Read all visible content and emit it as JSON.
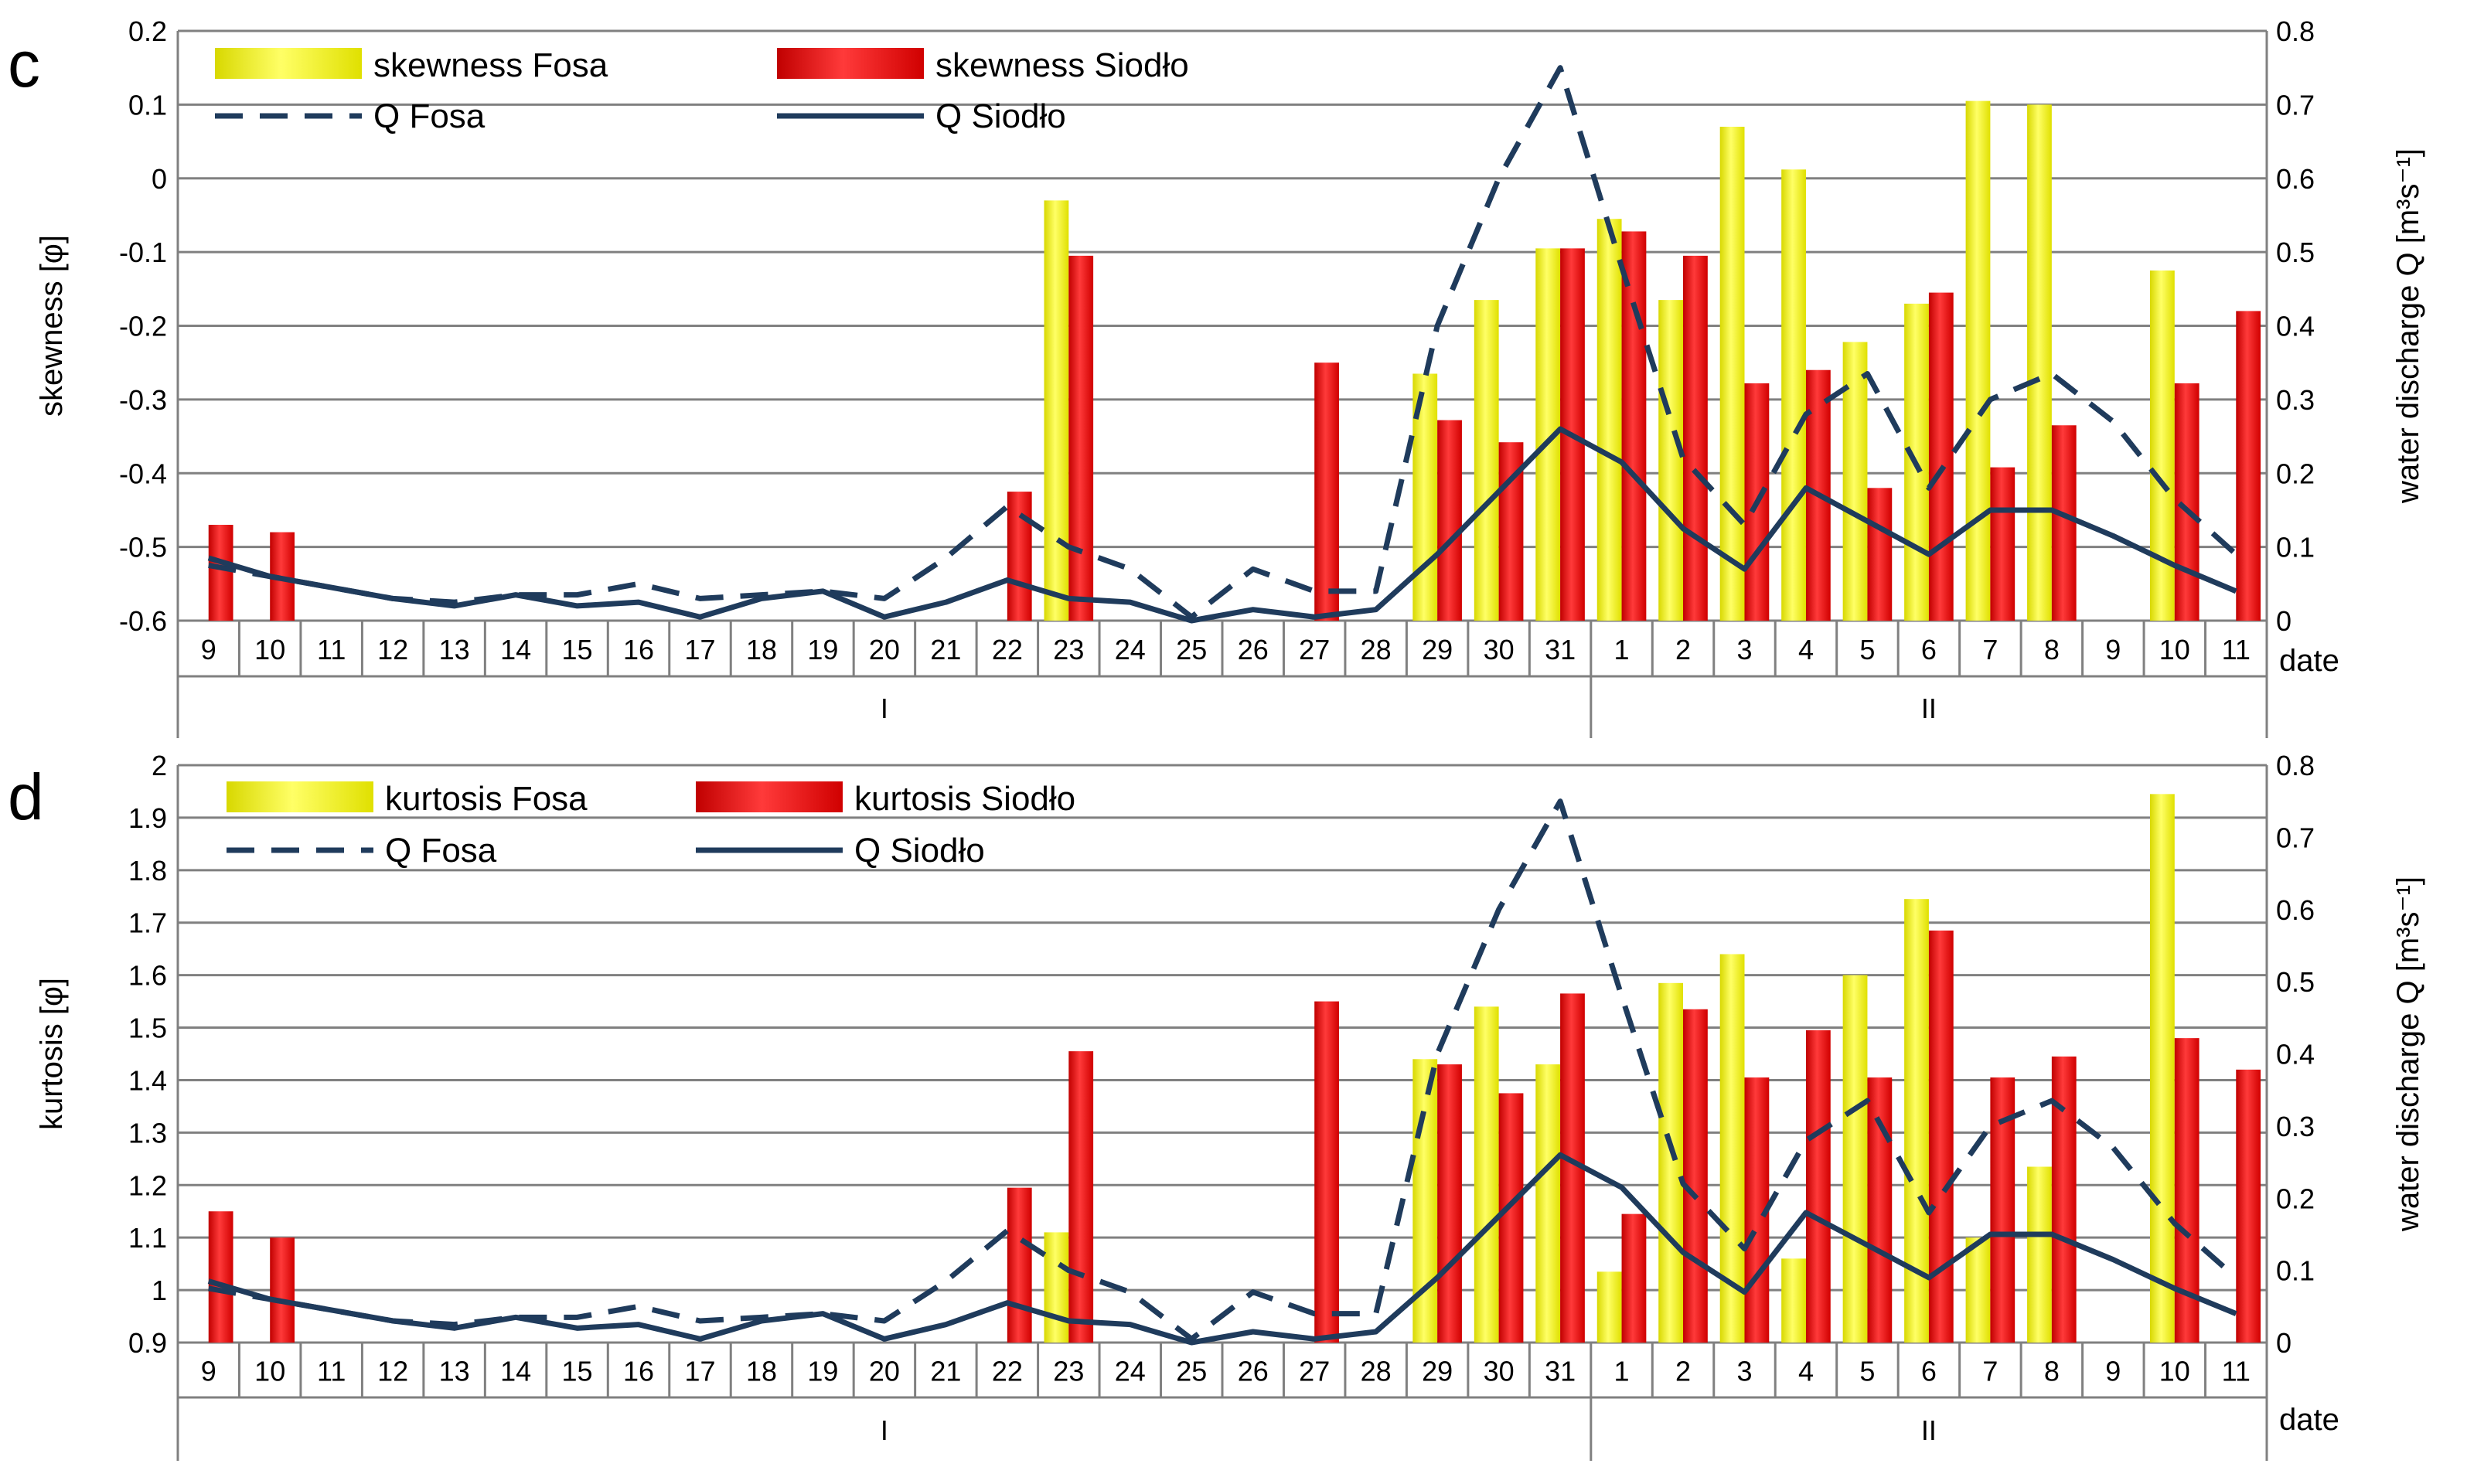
{
  "chart_data": [
    {
      "panel": "c",
      "type": "bar",
      "ylabel": "skewness [φ]",
      "y2label": "water discharge Q [m³s⁻¹]",
      "xlabel": "date",
      "ylim": [
        -0.6,
        0.2
      ],
      "yticks": [
        0.2,
        0.1,
        0,
        -0.1,
        -0.2,
        -0.3,
        -0.4,
        -0.5,
        -0.6
      ],
      "ytick_labels": [
        "0.2",
        "0.1",
        "0",
        "-0.1",
        "-0.2",
        "-0.3",
        "-0.4",
        "-0.5",
        "-0.6"
      ],
      "y2lim": [
        0,
        0.8
      ],
      "y2ticks": [
        0.8,
        0.7,
        0.6,
        0.5,
        0.4,
        0.3,
        0.2,
        0.1,
        0
      ],
      "y2tick_labels": [
        "0.8",
        "0.7",
        "0.6",
        "0.5",
        "0.4",
        "0.3",
        "0.2",
        "0.1",
        "0"
      ],
      "categories": [
        "9",
        "10",
        "11",
        "12",
        "13",
        "14",
        "15",
        "16",
        "17",
        "18",
        "19",
        "20",
        "21",
        "22",
        "23",
        "24",
        "25",
        "26",
        "27",
        "28",
        "29",
        "30",
        "31",
        "1",
        "2",
        "3",
        "4",
        "5",
        "6",
        "7",
        "8",
        "9",
        "10",
        "11"
      ],
      "months": [
        {
          "label": "I",
          "from": 0,
          "to": 22
        },
        {
          "label": "II",
          "from": 23,
          "to": 33
        }
      ],
      "series": [
        {
          "name": "skewness Fosa",
          "kind": "bar",
          "color": "#ffff00",
          "values": [
            null,
            null,
            null,
            null,
            null,
            null,
            null,
            null,
            null,
            null,
            null,
            null,
            null,
            null,
            -0.03,
            null,
            null,
            null,
            null,
            null,
            -0.265,
            -0.165,
            -0.095,
            -0.055,
            -0.165,
            0.07,
            0.012,
            -0.222,
            -0.17,
            0.105,
            0.1,
            null,
            -0.125,
            null
          ]
        },
        {
          "name": "skewness Siodło",
          "kind": "bar",
          "color": "#ff0000",
          "values": [
            -0.47,
            -0.48,
            null,
            null,
            null,
            null,
            null,
            null,
            null,
            null,
            null,
            null,
            null,
            -0.425,
            -0.105,
            null,
            null,
            null,
            -0.25,
            null,
            -0.328,
            -0.358,
            -0.095,
            -0.072,
            -0.105,
            -0.278,
            -0.26,
            -0.42,
            -0.155,
            -0.392,
            -0.335,
            null,
            -0.278,
            -0.18
          ]
        },
        {
          "name": "Q Fosa",
          "kind": "line",
          "axis": "right",
          "dash": true,
          "values": [
            0.075,
            0.06,
            0.045,
            0.03,
            0.025,
            0.035,
            0.035,
            0.05,
            0.03,
            0.035,
            0.04,
            0.03,
            0.085,
            0.155,
            0.1,
            0.07,
            0.005,
            0.07,
            0.04,
            0.04,
            0.4,
            0.6,
            0.75,
            0.48,
            0.22,
            0.13,
            0.28,
            0.335,
            0.18,
            0.3,
            0.335,
            0.27,
            0.165,
            0.09
          ]
        },
        {
          "name": "Q Siodło",
          "kind": "line",
          "axis": "right",
          "dash": false,
          "values": [
            0.085,
            0.06,
            0.045,
            0.03,
            0.02,
            0.035,
            0.02,
            0.025,
            0.005,
            0.03,
            0.04,
            0.005,
            0.025,
            0.055,
            0.03,
            0.025,
            0.0,
            0.015,
            0.005,
            0.015,
            0.09,
            0.175,
            0.26,
            0.215,
            0.125,
            0.07,
            0.18,
            0.135,
            0.09,
            0.15,
            0.15,
            0.115,
            0.075,
            0.04
          ]
        }
      ]
    },
    {
      "panel": "d",
      "type": "bar",
      "ylabel": "kurtosis [φ]",
      "y2label": "water discharge Q [m³s⁻¹]",
      "xlabel": "date",
      "ylim": [
        0.9,
        2.0
      ],
      "yticks": [
        2,
        1.9,
        1.8,
        1.7,
        1.6,
        1.5,
        1.4,
        1.3,
        1.2,
        1.1,
        1,
        0.9
      ],
      "ytick_labels": [
        "2",
        "1.9",
        "1.8",
        "1.7",
        "1.6",
        "1.5",
        "1.4",
        "1.3",
        "1.2",
        "1.1",
        "1",
        "0.9"
      ],
      "y2lim": [
        0,
        0.8
      ],
      "y2ticks": [
        0.8,
        0.7,
        0.6,
        0.5,
        0.4,
        0.3,
        0.2,
        0.1,
        0
      ],
      "y2tick_labels": [
        "0.8",
        "0.7",
        "0.6",
        "0.5",
        "0.4",
        "0.3",
        "0.2",
        "0.1",
        "0"
      ],
      "categories": [
        "9",
        "10",
        "11",
        "12",
        "13",
        "14",
        "15",
        "16",
        "17",
        "18",
        "19",
        "20",
        "21",
        "22",
        "23",
        "24",
        "25",
        "26",
        "27",
        "28",
        "29",
        "30",
        "31",
        "1",
        "2",
        "3",
        "4",
        "5",
        "6",
        "7",
        "8",
        "9",
        "10",
        "11"
      ],
      "months": [
        {
          "label": "I",
          "from": 0,
          "to": 22
        },
        {
          "label": "II",
          "from": 23,
          "to": 33
        }
      ],
      "series": [
        {
          "name": "kurtosis Fosa",
          "kind": "bar",
          "color": "#ffff00",
          "values": [
            null,
            null,
            null,
            null,
            null,
            null,
            null,
            null,
            null,
            null,
            null,
            null,
            null,
            null,
            1.11,
            null,
            null,
            null,
            null,
            null,
            1.44,
            1.54,
            1.43,
            1.035,
            1.585,
            1.64,
            1.06,
            1.6,
            1.745,
            1.1,
            1.235,
            null,
            1.945,
            null
          ]
        },
        {
          "name": "kurtosis Siodło",
          "kind": "bar",
          "color": "#ff0000",
          "values": [
            1.15,
            1.1,
            null,
            null,
            null,
            null,
            null,
            null,
            null,
            null,
            null,
            null,
            null,
            1.195,
            1.455,
            null,
            null,
            null,
            1.55,
            null,
            1.43,
            1.375,
            1.565,
            1.145,
            1.535,
            1.405,
            1.495,
            1.405,
            1.685,
            1.405,
            1.445,
            null,
            1.48,
            1.42
          ]
        },
        {
          "name": "Q Fosa",
          "kind": "line",
          "axis": "right",
          "dash": true,
          "values": [
            0.075,
            0.06,
            0.045,
            0.03,
            0.025,
            0.035,
            0.035,
            0.05,
            0.03,
            0.035,
            0.04,
            0.03,
            0.085,
            0.155,
            0.1,
            0.07,
            0.005,
            0.07,
            0.04,
            0.04,
            0.4,
            0.6,
            0.75,
            0.48,
            0.22,
            0.13,
            0.28,
            0.335,
            0.18,
            0.3,
            0.335,
            0.27,
            0.165,
            0.09
          ]
        },
        {
          "name": "Q Siodło",
          "kind": "line",
          "axis": "right",
          "dash": false,
          "values": [
            0.085,
            0.06,
            0.045,
            0.03,
            0.02,
            0.035,
            0.02,
            0.025,
            0.005,
            0.03,
            0.04,
            0.005,
            0.025,
            0.055,
            0.03,
            0.025,
            0.0,
            0.015,
            0.005,
            0.015,
            0.09,
            0.175,
            0.26,
            0.215,
            0.125,
            0.07,
            0.18,
            0.135,
            0.09,
            0.15,
            0.15,
            0.115,
            0.075,
            0.04
          ]
        }
      ]
    }
  ]
}
